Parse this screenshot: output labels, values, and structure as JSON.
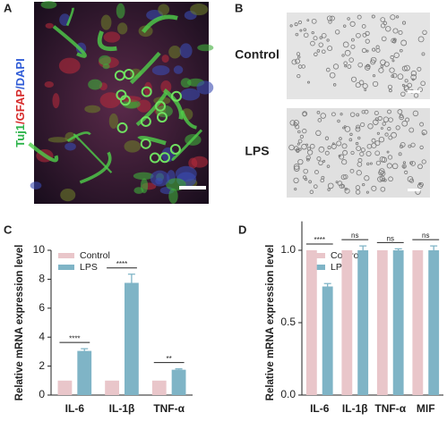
{
  "panels": {
    "a": {
      "label": "A",
      "stain": [
        {
          "text": "Tuj1",
          "color": "#2db34a"
        },
        {
          "text": "/GFAP",
          "color": "#d62a2a"
        },
        {
          "text": "/DAPI",
          "color": "#2f5bd6"
        }
      ]
    },
    "b": {
      "label": "B",
      "rows": [
        "Control",
        "LPS"
      ]
    },
    "c": {
      "label": "C"
    },
    "d": {
      "label": "D"
    }
  },
  "chart_data": [
    {
      "type": "bar",
      "y_label": "Relative mRNA expression level",
      "categories": [
        "IL-6",
        "IL-1β",
        "TNF-α"
      ],
      "series": [
        {
          "name": "Control",
          "color": "#e9c6ca",
          "values": [
            1,
            1,
            1
          ]
        },
        {
          "name": "LPS",
          "color": "#7fb4c6",
          "values": [
            3.05,
            7.75,
            1.75
          ],
          "errors": [
            0.15,
            0.6,
            0.06
          ]
        }
      ],
      "significance": [
        "****",
        "****",
        "**"
      ],
      "ylim": [
        0,
        10
      ],
      "yticks": [
        0,
        2,
        4,
        6,
        8,
        10
      ]
    },
    {
      "type": "bar",
      "y_label": "Relative mRNA expression level",
      "categories": [
        "IL-6",
        "IL-1β",
        "TNF-α",
        "MIF"
      ],
      "series": [
        {
          "name": "Control",
          "color": "#e9c6ca",
          "values": [
            1,
            1,
            1,
            1
          ]
        },
        {
          "name": "LPS",
          "color": "#7fb4c6",
          "values": [
            0.75,
            1.0,
            1.0,
            1.0
          ],
          "errors": [
            0.02,
            0.03,
            0.01,
            0.03
          ]
        }
      ],
      "significance": [
        "****",
        "ns",
        "ns",
        "ns"
      ],
      "ylim": [
        0,
        1.2
      ],
      "yticks": [
        {
          "value": 0,
          "label": "0.0"
        },
        {
          "value": 0.5,
          "label": "0.5"
        },
        {
          "value": 1,
          "label": "1.0"
        }
      ]
    }
  ]
}
